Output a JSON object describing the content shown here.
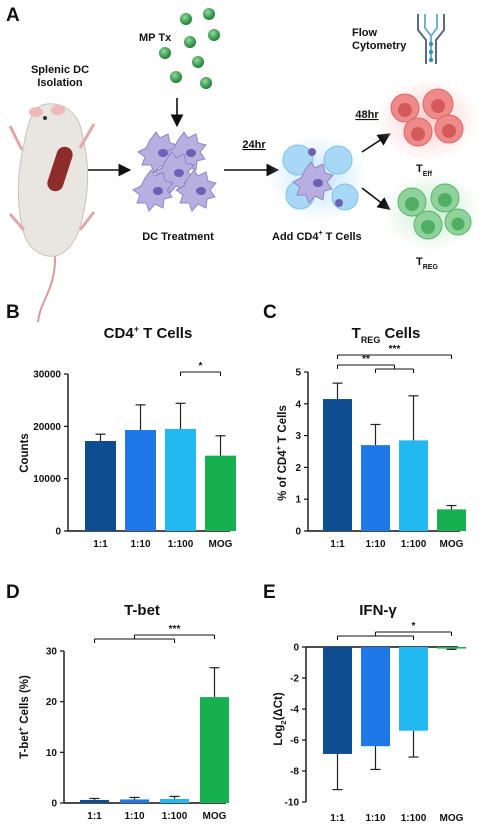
{
  "panel_a": {
    "panel_label": "A",
    "mp_label": "MP Tx",
    "isolation_label_1": "Splenic DC",
    "isolation_label_2": "Isolation",
    "treatment_label": "DC Treatment",
    "time_1": "24hr",
    "time_2": "48hr",
    "add_cells_label": "Add CD4",
    "add_cells_sup": "+",
    "add_cells_tail": " T Cells",
    "flow_label_1": "Flow",
    "flow_label_2": "Cytometry",
    "teff_main": "T",
    "teff_sub": "Eff",
    "treg_main": "T",
    "treg_sub": "REG"
  },
  "colors": {
    "dark_blue": "#0f4d91",
    "mid_blue": "#1f78e8",
    "light_blue": "#22b8f2",
    "green": "#17b050"
  },
  "chart_data": [
    {
      "id": "B",
      "panel_label": "B",
      "type": "bar",
      "title_main": "CD4",
      "title_sup": "+",
      "title_rest": " T Cells",
      "ylabel": "Counts",
      "categories": [
        "1:1",
        "1:10",
        "1:100",
        "MOG"
      ],
      "values": [
        17200,
        19300,
        19500,
        14400
      ],
      "errors": [
        1300,
        4800,
        4900,
        3800
      ],
      "ylim": [
        0,
        30000
      ],
      "yticks": [
        "0",
        "10000",
        "20000",
        "30000"
      ],
      "significance": [
        {
          "from": 2,
          "to": 3,
          "label": "*"
        }
      ]
    },
    {
      "id": "C",
      "panel_label": "C",
      "type": "bar",
      "title_main": "T",
      "title_sub": "REG",
      "title_rest": " Cells",
      "ylabel_main": "% of CD4",
      "ylabel_sup": "+",
      "ylabel_rest": " T Cells",
      "categories": [
        "1:1",
        "1:10",
        "1:100",
        "MOG"
      ],
      "values": [
        4.15,
        2.7,
        2.85,
        0.68
      ],
      "errors": [
        0.5,
        0.65,
        1.4,
        0.12
      ],
      "ylim": [
        0,
        5
      ],
      "yticks": [
        "0",
        "1",
        "2",
        "3",
        "4",
        "5"
      ],
      "significance": [
        {
          "from": 0,
          "to": [
            1,
            2
          ],
          "label": "**"
        },
        {
          "from": 0,
          "to": 3,
          "label": "***"
        }
      ]
    },
    {
      "id": "D",
      "panel_label": "D",
      "type": "bar",
      "title": "T-bet",
      "ylabel_main": "T-bet",
      "ylabel_sup": "+",
      "ylabel_rest": " Cells (%)",
      "categories": [
        "1:1",
        "1:10",
        "1:100",
        "MOG"
      ],
      "values": [
        0.6,
        0.7,
        0.8,
        20.9
      ],
      "errors": [
        0.3,
        0.4,
        0.5,
        5.8
      ],
      "ylim": [
        0,
        30
      ],
      "yticks": [
        "0",
        "10",
        "20",
        "30"
      ],
      "significance": [
        {
          "from": [
            0,
            1,
            2
          ],
          "to": 3,
          "label": "***"
        }
      ]
    },
    {
      "id": "E",
      "panel_label": "E",
      "type": "bar",
      "title": "IFN-γ",
      "ylabel_main": "Log",
      "ylabel_sub": "2",
      "ylabel_rest": "(ΔCt)",
      "categories": [
        "1:1",
        "1:10",
        "1:100",
        "MOG"
      ],
      "values": [
        -6.9,
        -6.4,
        -5.4,
        -0.1
      ],
      "errors": [
        2.3,
        1.5,
        1.7,
        0.05
      ],
      "ylim": [
        -10,
        0
      ],
      "yticks": [
        "-10",
        "-8",
        "-6",
        "-4",
        "-2",
        "0"
      ],
      "significance": [
        {
          "from": [
            0,
            1,
            2
          ],
          "to": 3,
          "label": "*"
        }
      ]
    }
  ]
}
